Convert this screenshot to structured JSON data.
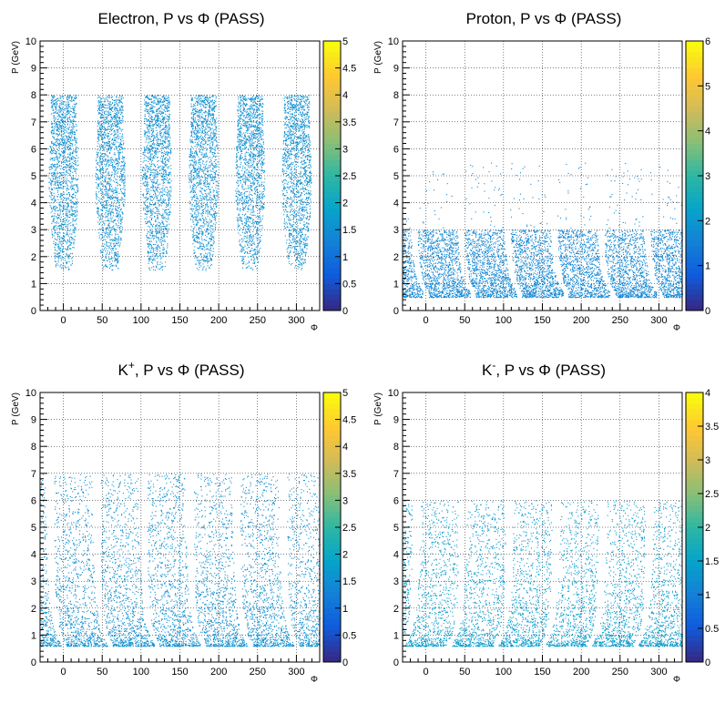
{
  "palette": [
    "#352a87",
    "#0f5cdd",
    "#1481d6",
    "#06a4ca",
    "#2eb7a4",
    "#87bf77",
    "#d1bb59",
    "#fec832",
    "#f9fb0e"
  ],
  "chart_data": [
    {
      "type": "heatmap",
      "title": "Electron, P vs Φ (PASS)",
      "title_parts": {
        "pre": "Electron, P vs ",
        "phi": "Φ",
        "post": " (PASS)",
        "sup": ""
      },
      "xlabel": "Φ",
      "ylabel": "P (GeV)",
      "xlim": [
        -30,
        330
      ],
      "ylim": [
        0,
        10
      ],
      "x_ticks": [
        0,
        50,
        100,
        150,
        200,
        250,
        300
      ],
      "y_ticks": [
        0,
        1,
        2,
        3,
        4,
        5,
        6,
        7,
        8,
        9,
        10
      ],
      "z_range": [
        0,
        5
      ],
      "z_ticks": [
        "0",
        "0.5",
        "1",
        "1.5",
        "2",
        "2.5",
        "3",
        "3.5",
        "4",
        "4.5",
        "5"
      ],
      "grid": true,
      "pattern": "electron",
      "sector_centers": [
        0,
        60,
        120,
        180,
        240,
        300
      ],
      "p_range": [
        1.5,
        8.0
      ],
      "typical_z": 1
    },
    {
      "type": "heatmap",
      "title": "Proton, P vs Φ (PASS)",
      "title_parts": {
        "pre": "Proton, P vs ",
        "phi": "Φ",
        "post": " (PASS)",
        "sup": ""
      },
      "xlabel": "Φ",
      "ylabel": "P (GeV)",
      "xlim": [
        -30,
        330
      ],
      "ylim": [
        0,
        10
      ],
      "x_ticks": [
        0,
        50,
        100,
        150,
        200,
        250,
        300
      ],
      "y_ticks": [
        0,
        1,
        2,
        3,
        4,
        5,
        6,
        7,
        8,
        9,
        10
      ],
      "z_range": [
        0,
        6
      ],
      "z_ticks": [
        "0",
        "1",
        "2",
        "3",
        "4",
        "5",
        "6"
      ],
      "grid": true,
      "pattern": "hadron",
      "gap_centers": [
        -20,
        40,
        100,
        160,
        220,
        280
      ],
      "p_range": [
        0.5,
        3.0
      ],
      "typical_z": 1
    },
    {
      "type": "heatmap",
      "title": "K+, P vs Φ (PASS)",
      "title_parts": {
        "pre": "K",
        "phi": "Φ",
        "post": " (PASS)",
        "sup": "+",
        "mid": ", P vs "
      },
      "xlabel": "Φ",
      "ylabel": "P (GeV)",
      "xlim": [
        -30,
        330
      ],
      "ylim": [
        0,
        10
      ],
      "x_ticks": [
        0,
        50,
        100,
        150,
        200,
        250,
        300
      ],
      "y_ticks": [
        0,
        1,
        2,
        3,
        4,
        5,
        6,
        7,
        8,
        9,
        10
      ],
      "z_range": [
        0,
        5
      ],
      "z_ticks": [
        "0",
        "0.5",
        "1",
        "1.5",
        "2",
        "2.5",
        "3",
        "3.5",
        "4",
        "4.5",
        "5"
      ],
      "grid": true,
      "pattern": "kplus",
      "gap_centers": [
        -20,
        40,
        100,
        160,
        220,
        280
      ],
      "p_range": [
        0.6,
        7.0
      ],
      "typical_z": 1
    },
    {
      "type": "heatmap",
      "title": "K-, P vs Φ (PASS)",
      "title_parts": {
        "pre": "K",
        "phi": "Φ",
        "post": " (PASS)",
        "sup": "-",
        "mid": ", P vs "
      },
      "xlabel": "Φ",
      "ylabel": "P (GeV)",
      "xlim": [
        -30,
        330
      ],
      "ylim": [
        0,
        10
      ],
      "x_ticks": [
        0,
        50,
        100,
        150,
        200,
        250,
        300
      ],
      "y_ticks": [
        0,
        1,
        2,
        3,
        4,
        5,
        6,
        7,
        8,
        9,
        10
      ],
      "z_range": [
        0,
        4
      ],
      "z_ticks": [
        "0",
        "0.5",
        "1",
        "1.5",
        "2",
        "2.5",
        "3",
        "3.5",
        "4"
      ],
      "grid": true,
      "pattern": "kminus",
      "gap_centers": [
        -10,
        50,
        110,
        170,
        230,
        290
      ],
      "p_range": [
        0.6,
        6.0
      ],
      "typical_z": 1
    }
  ]
}
